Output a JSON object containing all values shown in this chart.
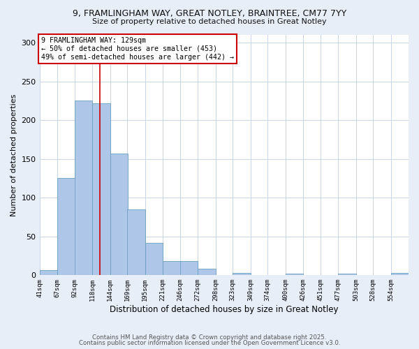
{
  "title_line1": "9, FRAMLINGHAM WAY, GREAT NOTLEY, BRAINTREE, CM77 7YY",
  "title_line2": "Size of property relative to detached houses in Great Notley",
  "xlabel": "Distribution of detached houses by size in Great Notley",
  "ylabel": "Number of detached properties",
  "bin_labels": [
    "41sqm",
    "67sqm",
    "92sqm",
    "118sqm",
    "144sqm",
    "169sqm",
    "195sqm",
    "221sqm",
    "246sqm",
    "272sqm",
    "298sqm",
    "323sqm",
    "349sqm",
    "374sqm",
    "400sqm",
    "426sqm",
    "451sqm",
    "477sqm",
    "503sqm",
    "528sqm",
    "554sqm"
  ],
  "bin_edges": [
    41,
    67,
    92,
    118,
    144,
    169,
    195,
    221,
    246,
    272,
    298,
    323,
    349,
    374,
    400,
    426,
    451,
    477,
    503,
    528,
    554
  ],
  "bin_width": 26,
  "bar_heights": [
    7,
    125,
    225,
    222,
    157,
    85,
    42,
    18,
    18,
    8,
    0,
    3,
    0,
    0,
    2,
    0,
    0,
    2,
    0,
    0,
    3
  ],
  "bar_color": "#aec6e8",
  "bar_edgecolor": "#6a9ec0",
  "property_size": 129,
  "red_line_color": "#cc0000",
  "annotation_text": "9 FRAMLINGHAM WAY: 129sqm\n← 50% of detached houses are smaller (453)\n49% of semi-detached houses are larger (442) →",
  "annotation_box_color": "#ffffff",
  "annotation_box_edgecolor": "#cc0000",
  "ylim": [
    0,
    310
  ],
  "yticks": [
    0,
    50,
    100,
    150,
    200,
    250,
    300
  ],
  "footer_line1": "Contains HM Land Registry data © Crown copyright and database right 2025.",
  "footer_line2": "Contains public sector information licensed under the Open Government Licence v3.0.",
  "bg_color": "#e8eef8",
  "plot_bg_color": "#ffffff",
  "grid_color": "#c8d4e8"
}
